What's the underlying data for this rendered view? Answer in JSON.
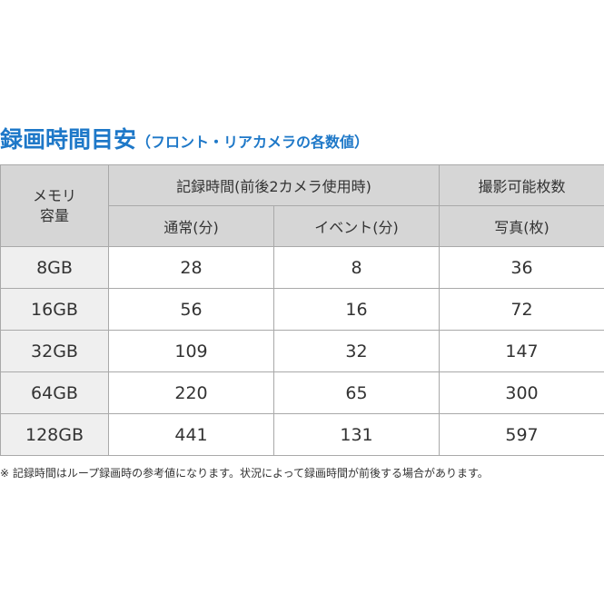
{
  "title": {
    "main": "録画時間目安",
    "sub": "（フロント・リアカメラの各数値）"
  },
  "table": {
    "capacity_header": [
      "メモリ",
      "容量"
    ],
    "recording_header": "記録時間(前後2カメラ使用時)",
    "photos_header": "撮影可能枚数",
    "normal_header": "通常(分)",
    "event_header": "イベント(分)",
    "photo_header": "写真(枚)",
    "rows": [
      {
        "capacity": "8GB",
        "normal": "28",
        "event": "8",
        "photos": "36"
      },
      {
        "capacity": "16GB",
        "normal": "56",
        "event": "16",
        "photos": "72"
      },
      {
        "capacity": "32GB",
        "normal": "109",
        "event": "32",
        "photos": "147"
      },
      {
        "capacity": "64GB",
        "normal": "220",
        "event": "65",
        "photos": "300"
      },
      {
        "capacity": "128GB",
        "normal": "441",
        "event": "131",
        "photos": "597"
      }
    ]
  },
  "note": "※ 記録時間はループ録画時の参考値になります。状況によって録画時間が前後する場合があります。",
  "colors": {
    "title": "#1e78c8",
    "header_bg": "#d6d6d6",
    "capacity_bg": "#efefef",
    "border": "#a9a9a9",
    "text": "#333333"
  }
}
